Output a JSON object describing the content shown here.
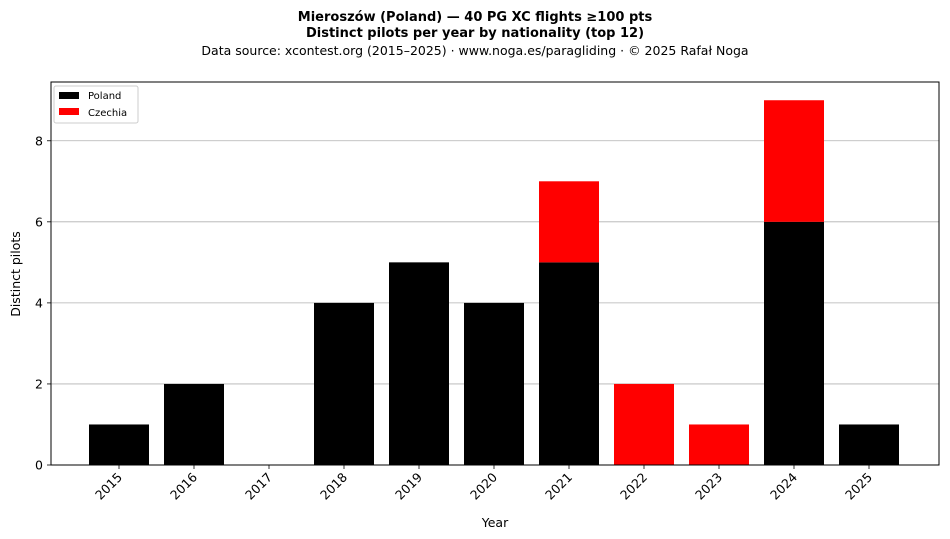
{
  "chart_data": {
    "type": "bar",
    "stacked": true,
    "title": "Mieroszów (Poland)  —  40 PG XC flights ≥100 pts",
    "subtitle": "Distinct pilots per year by nationality (top 12)",
    "source_line": "Data source: xcontest.org (2015–2025)  ·  www.noga.es/paragliding  ·  © 2025 Rafał Noga",
    "xlabel": "Year",
    "ylabel": "Distinct pilots",
    "categories": [
      "2015",
      "2016",
      "2017",
      "2018",
      "2019",
      "2020",
      "2021",
      "2022",
      "2023",
      "2024",
      "2025"
    ],
    "series": [
      {
        "name": "Poland",
        "color": "#000000",
        "values": [
          1,
          2,
          0,
          4,
          5,
          4,
          5,
          0,
          0,
          6,
          1
        ]
      },
      {
        "name": "Czechia",
        "color": "#ff0000",
        "values": [
          0,
          0,
          0,
          0,
          0,
          0,
          2,
          2,
          1,
          3,
          0
        ]
      }
    ],
    "ylim": [
      0,
      9.45
    ],
    "yticks": [
      0,
      2,
      4,
      6,
      8
    ],
    "grid": "y",
    "legend_position": "top-left"
  }
}
